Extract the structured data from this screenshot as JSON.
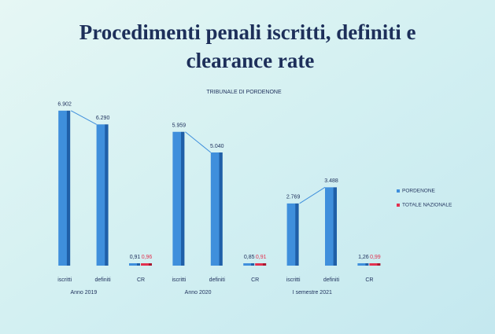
{
  "chart_data": {
    "type": "bar",
    "title": "Procedimenti penali iscritti, definiti e clearance rate",
    "subtitle": "TRIBUNALE DI PORDENONE",
    "categories": [
      "iscritti",
      "definiti",
      "CR",
      "iscritti",
      "definiti",
      "CR",
      "iscritti",
      "definiti",
      "CR"
    ],
    "groups": [
      "Anno 2019",
      "Anno 2020",
      "I semestre 2021"
    ],
    "series": [
      {
        "name": "PORDENONE",
        "color": "#3f8fdc",
        "values": [
          6902,
          6290,
          0.91,
          5959,
          5040,
          0.85,
          2769,
          3488,
          1.26
        ],
        "value_labels": [
          "6.902",
          "6.290",
          "0,91",
          "5.959",
          "5.040",
          "0,85",
          "2.769",
          "3.488",
          "1,26"
        ]
      },
      {
        "name": "TOTALE NAZIONALE",
        "color": "#e2314f",
        "values": [
          null,
          null,
          0.96,
          null,
          null,
          0.91,
          null,
          null,
          0.99
        ],
        "value_labels": [
          null,
          null,
          "0,96",
          null,
          null,
          "0,91",
          null,
          null,
          "0,99"
        ]
      }
    ],
    "ylim": [
      0,
      7000
    ],
    "legend": "right"
  }
}
